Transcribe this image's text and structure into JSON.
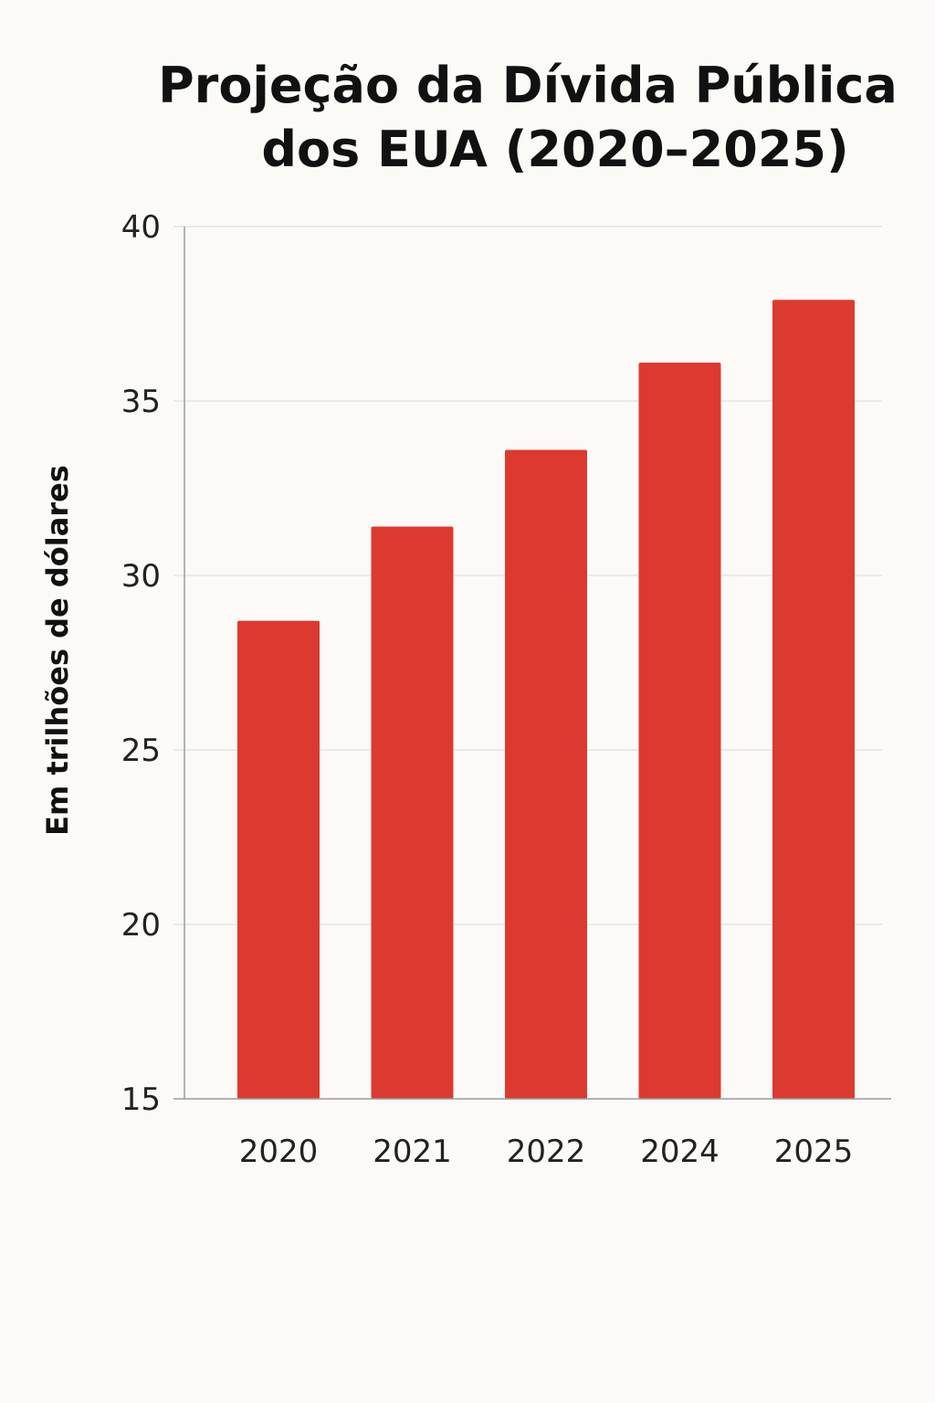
{
  "chart_data": {
    "type": "bar",
    "title_lines": [
      "Projeção da Dívida Pública",
      "dos EUA (2020–2025)"
    ],
    "xlabel": "",
    "ylabel": "Em trilhões de dólares",
    "categories": [
      "2020",
      "2021",
      "2022",
      "2024",
      "2025"
    ],
    "values": [
      28.7,
      31.4,
      33.6,
      36.1,
      37.9
    ],
    "ylim": [
      15,
      40
    ],
    "yticks": [
      15,
      20,
      25,
      30,
      35,
      40
    ],
    "grid": true,
    "legend": "none",
    "bar_color": "#dc3a30"
  }
}
